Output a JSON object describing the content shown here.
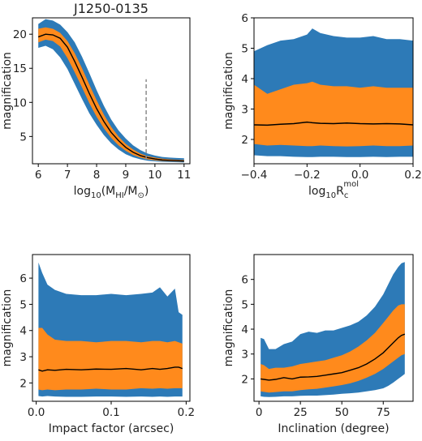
{
  "figure": {
    "colors": {
      "outer_band": "#2d7ab7",
      "inner_band": "#ff8a1c",
      "median": "#000000",
      "marker": "#8c8c8c"
    }
  },
  "chart_data": [
    {
      "type": "area",
      "title": "J1250-0135",
      "xlabel": "log10(MHI/M⊙)",
      "ylabel": "magnification",
      "xlim": [
        5.8,
        11.2
      ],
      "ylim": [
        1.0,
        22.4
      ],
      "xticks": [
        6,
        7,
        8,
        9,
        10,
        11
      ],
      "yticks": [
        5,
        10,
        15,
        20
      ],
      "marker_line": {
        "x": 9.7,
        "y": [
          1.6,
          13.4
        ]
      },
      "x": [
        6.0,
        6.25,
        6.5,
        6.75,
        7.0,
        7.25,
        7.5,
        7.75,
        8.0,
        8.25,
        8.5,
        8.75,
        9.0,
        9.25,
        9.5,
        9.75,
        10.0,
        10.25,
        10.5,
        10.75,
        11.0
      ],
      "outer_upper": [
        21.5,
        22.2,
        22.0,
        21.4,
        20.3,
        18.8,
        16.7,
        14.3,
        11.8,
        9.5,
        7.5,
        5.9,
        4.7,
        3.7,
        3.0,
        2.5,
        2.2,
        2.0,
        1.9,
        1.85,
        1.8
      ],
      "inner_upper": [
        20.8,
        21.0,
        20.8,
        20.2,
        19.0,
        17.2,
        15.0,
        12.6,
        10.3,
        8.2,
        6.4,
        5.0,
        3.9,
        3.1,
        2.5,
        2.1,
        1.9,
        1.75,
        1.65,
        1.6,
        1.55
      ],
      "median": [
        19.6,
        20.0,
        19.9,
        19.4,
        18.1,
        16.0,
        13.7,
        11.3,
        9.1,
        7.2,
        5.6,
        4.4,
        3.4,
        2.7,
        2.2,
        1.9,
        1.7,
        1.55,
        1.5,
        1.45,
        1.4
      ],
      "inner_lower": [
        18.8,
        19.2,
        19.0,
        18.2,
        16.5,
        14.4,
        12.2,
        9.9,
        7.9,
        6.2,
        4.8,
        3.7,
        2.9,
        2.3,
        1.9,
        1.65,
        1.5,
        1.4,
        1.35,
        1.32,
        1.3
      ],
      "outer_lower": [
        18.0,
        18.3,
        17.8,
        16.6,
        14.9,
        12.7,
        10.5,
        8.4,
        6.7,
        5.2,
        4.0,
        3.1,
        2.4,
        1.95,
        1.65,
        1.45,
        1.35,
        1.28,
        1.25,
        1.22,
        1.2
      ]
    },
    {
      "type": "area",
      "title": "",
      "xlabel": "log10Rcmol",
      "ylabel": "magnification",
      "xlim": [
        -0.4,
        0.2
      ],
      "ylim": [
        1.2,
        6.0
      ],
      "xticks": [
        -0.4,
        -0.2,
        0.0,
        0.2
      ],
      "yticks": [
        2,
        3,
        4,
        5,
        6
      ],
      "x": [
        -0.4,
        -0.35,
        -0.3,
        -0.25,
        -0.2,
        -0.18,
        -0.15,
        -0.1,
        -0.05,
        0.0,
        0.05,
        0.1,
        0.15,
        0.2
      ],
      "outer_upper": [
        4.9,
        5.1,
        5.25,
        5.3,
        5.45,
        5.65,
        5.5,
        5.4,
        5.35,
        5.35,
        5.4,
        5.3,
        5.3,
        5.25
      ],
      "inner_upper": [
        3.8,
        3.5,
        3.65,
        3.8,
        3.85,
        3.9,
        3.8,
        3.75,
        3.75,
        3.7,
        3.75,
        3.7,
        3.7,
        3.7
      ],
      "median": [
        2.48,
        2.47,
        2.5,
        2.52,
        2.57,
        2.55,
        2.53,
        2.52,
        2.54,
        2.52,
        2.51,
        2.52,
        2.51,
        2.48
      ],
      "inner_lower": [
        1.85,
        1.8,
        1.82,
        1.8,
        1.78,
        1.78,
        1.8,
        1.78,
        1.77,
        1.78,
        1.8,
        1.78,
        1.78,
        1.8
      ],
      "outer_lower": [
        1.48,
        1.45,
        1.45,
        1.43,
        1.42,
        1.42,
        1.43,
        1.43,
        1.42,
        1.42,
        1.43,
        1.42,
        1.43,
        1.43
      ]
    },
    {
      "type": "area",
      "title": "",
      "xlabel": "Impact factor (arcsec)",
      "ylabel": "magnification",
      "xlim": [
        -0.005,
        0.205
      ],
      "ylim": [
        1.3,
        6.9
      ],
      "xticks": [
        0.0,
        0.1,
        0.2
      ],
      "yticks": [
        2,
        3,
        4,
        5,
        6
      ],
      "x": [
        0.003,
        0.008,
        0.015,
        0.025,
        0.04,
        0.06,
        0.08,
        0.1,
        0.12,
        0.14,
        0.155,
        0.165,
        0.175,
        0.185,
        0.19,
        0.195
      ],
      "outer_upper": [
        6.6,
        6.2,
        5.75,
        5.55,
        5.4,
        5.35,
        5.35,
        5.4,
        5.35,
        5.4,
        5.45,
        5.65,
        5.3,
        5.6,
        4.7,
        4.6
      ],
      "inner_upper": [
        4.1,
        4.1,
        3.85,
        3.65,
        3.6,
        3.6,
        3.55,
        3.6,
        3.6,
        3.55,
        3.6,
        3.6,
        3.55,
        3.6,
        3.55,
        3.5
      ],
      "median": [
        2.5,
        2.45,
        2.5,
        2.48,
        2.52,
        2.5,
        2.53,
        2.52,
        2.55,
        2.5,
        2.55,
        2.52,
        2.55,
        2.6,
        2.6,
        2.55
      ],
      "inner_lower": [
        1.75,
        1.72,
        1.75,
        1.72,
        1.75,
        1.75,
        1.78,
        1.75,
        1.75,
        1.8,
        1.78,
        1.8,
        1.78,
        1.8,
        1.8,
        1.8
      ],
      "outer_lower": [
        1.5,
        1.48,
        1.5,
        1.48,
        1.47,
        1.47,
        1.48,
        1.48,
        1.47,
        1.48,
        1.47,
        1.48,
        1.47,
        1.48,
        1.48,
        1.48
      ]
    },
    {
      "type": "area",
      "title": "",
      "xlabel": "Inclination (degree)",
      "ylabel": "magnification",
      "xlim": [
        -3,
        93
      ],
      "ylim": [
        1.1,
        7.0
      ],
      "xticks": [
        0,
        25,
        50,
        75
      ],
      "yticks": [
        2,
        3,
        4,
        5,
        6
      ],
      "x": [
        1,
        3,
        6,
        10,
        15,
        20,
        25,
        30,
        35,
        40,
        45,
        50,
        55,
        60,
        65,
        70,
        75,
        78,
        81,
        84,
        86,
        88
      ],
      "outer_upper": [
        3.65,
        3.6,
        3.2,
        3.2,
        3.4,
        3.5,
        3.8,
        3.9,
        3.85,
        3.95,
        3.95,
        4.05,
        4.15,
        4.3,
        4.55,
        4.9,
        5.4,
        5.8,
        6.2,
        6.5,
        6.65,
        6.7
      ],
      "inner_upper": [
        2.6,
        2.55,
        2.4,
        2.45,
        2.45,
        2.5,
        2.6,
        2.65,
        2.7,
        2.75,
        2.85,
        2.95,
        3.1,
        3.3,
        3.55,
        3.85,
        4.25,
        4.5,
        4.75,
        4.95,
        5.0,
        5.0
      ],
      "median": [
        2.0,
        1.98,
        1.95,
        1.98,
        2.05,
        2.0,
        2.07,
        2.08,
        2.1,
        2.15,
        2.2,
        2.25,
        2.35,
        2.45,
        2.6,
        2.8,
        3.05,
        3.25,
        3.45,
        3.65,
        3.75,
        3.8
      ],
      "inner_lower": [
        1.5,
        1.48,
        1.45,
        1.47,
        1.5,
        1.5,
        1.55,
        1.58,
        1.6,
        1.65,
        1.7,
        1.75,
        1.82,
        1.92,
        2.05,
        2.2,
        2.4,
        2.55,
        2.7,
        2.85,
        2.95,
        3.0
      ],
      "outer_lower": [
        1.3,
        1.28,
        1.27,
        1.28,
        1.3,
        1.3,
        1.32,
        1.33,
        1.33,
        1.35,
        1.37,
        1.4,
        1.42,
        1.45,
        1.5,
        1.55,
        1.62,
        1.72,
        1.85,
        2.0,
        2.1,
        2.2
      ]
    }
  ]
}
